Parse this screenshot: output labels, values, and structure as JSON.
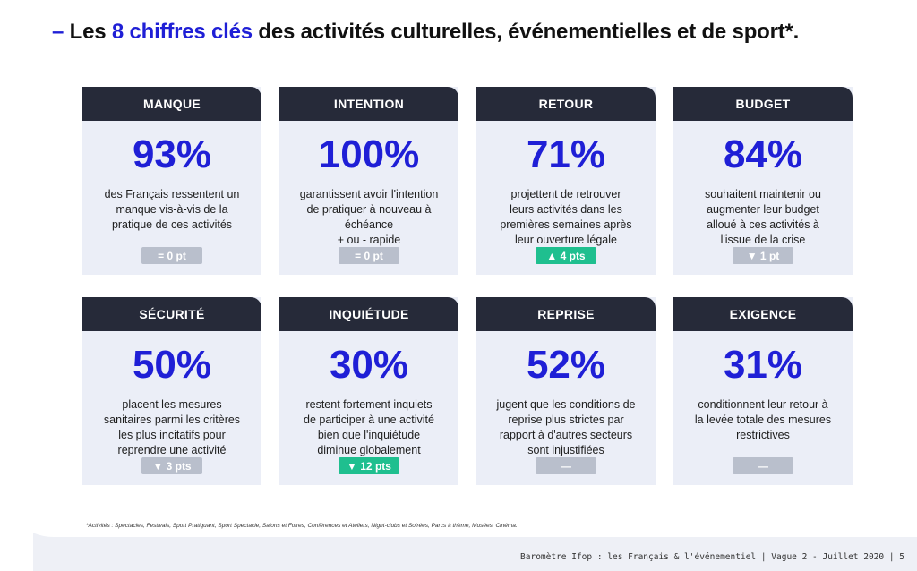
{
  "title": {
    "dash": "–",
    "prefix": "Les",
    "highlight": "8 chiffres clés",
    "rest": "des activités culturelles, événementielles et de sport*."
  },
  "cards": [
    {
      "header": "MANQUE",
      "value": "93%",
      "description": "des Français ressentent un\nmanque vis-à-vis de la\npratique de ces activités",
      "badge": "= 0 pt",
      "badge_color": "#b9bfcc"
    },
    {
      "header": "INTENTION",
      "value": "100%",
      "description": "garantissent avoir l'intention\nde pratiquer à nouveau à\néchéance\n+ ou - rapide",
      "badge": "= 0 pt",
      "badge_color": "#b9bfcc"
    },
    {
      "header": "RETOUR",
      "value": "71%",
      "description": "projettent de retrouver\nleurs activités dans les\npremières semaines après\nleur ouverture légale",
      "badge": "▲ 4 pts",
      "badge_color": "#1fbf8f"
    },
    {
      "header": "BUDGET",
      "value": "84%",
      "description": "souhaitent maintenir ou\naugmenter leur budget\nalloué à ces activités à\nl'issue de la crise",
      "badge": "▼ 1 pt",
      "badge_color": "#b9bfcc"
    },
    {
      "header": "SÉCURITÉ",
      "value": "50%",
      "description": "placent les mesures\nsanitaires parmi les critères\nles plus incitatifs pour\nreprendre une activité",
      "badge": "▼ 3 pts",
      "badge_color": "#b9bfcc"
    },
    {
      "header": "INQUIÉTUDE",
      "value": "30%",
      "description": "restent fortement inquiets\nde participer à une activité\nbien que l'inquiétude\ndiminue globalement",
      "badge": "▼ 12 pts",
      "badge_color": "#1fbf8f"
    },
    {
      "header": "REPRISE",
      "value": "52%",
      "description": "jugent que les conditions de\nreprise plus strictes par\nrapport à d'autres secteurs\nsont injustifiées",
      "badge": "—",
      "badge_color": "#b9bfcc"
    },
    {
      "header": "EXIGENCE",
      "value": "31%",
      "description": "conditionnent leur retour à\nla levée totale des mesures\nrestrictives",
      "badge": "—",
      "badge_color": "#b9bfcc"
    }
  ],
  "footnote": "*Activités : Spectacles, Festivals, Sport Pratiquant, Sport Spectacle, Salons et Foires, Conférences et Ateliers, Night-clubs et Soirées, Parcs à thème, Musées, Cinéma.",
  "footer": "Baromètre Ifop : les Français & l'événementiel | Vague 2 - Juillet 2020 | 5"
}
